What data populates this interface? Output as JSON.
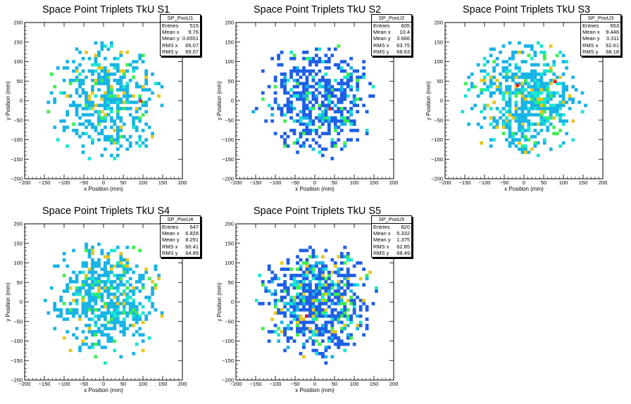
{
  "chart_data": [
    {
      "type": "heatmap",
      "title": "Space Point Triplets TkU S1",
      "xlabel": "x Position (mm)",
      "ylabel": "y Position (mm)",
      "xlim": [
        -200,
        200
      ],
      "ylim": [
        -200,
        200
      ],
      "xticks": [
        "−200",
        "−150",
        "−100",
        "−50",
        "0",
        "50",
        "100",
        "150",
        "200"
      ],
      "yticks": [
        "200",
        "150",
        "100",
        "50",
        "0",
        "−50",
        "−100",
        "−150",
        "−200"
      ],
      "stats": {
        "name": "SP_PosU1",
        "rows": [
          {
            "label": "Entries",
            "value": "515"
          },
          {
            "label": "Mean x",
            "value": "9.76"
          },
          {
            "label": "Mean y",
            "value": "0.6551"
          },
          {
            "label": "RMS x",
            "value": "65.07"
          },
          {
            "label": "RMS y",
            "value": "69.07"
          }
        ]
      },
      "hot_cells": [
        [
          90,
          -5
        ]
      ]
    },
    {
      "type": "heatmap",
      "title": "Space Point Triplets TkU S2",
      "xlabel": "x Position (mm)",
      "ylabel": "y Position (mm)",
      "xlim": [
        -200,
        200
      ],
      "ylim": [
        -200,
        200
      ],
      "xticks": [
        "−200",
        "−150",
        "−100",
        "−50",
        "0",
        "50",
        "100",
        "150",
        "200"
      ],
      "yticks": [
        "200",
        "150",
        "100",
        "50",
        "0",
        "−50",
        "−100",
        "−150",
        "−200"
      ],
      "stats": {
        "name": "SP_PosU2",
        "rows": [
          {
            "label": "Entries",
            "value": "605"
          },
          {
            "label": "Mean x",
            "value": "10.4"
          },
          {
            "label": "Mean y",
            "value": "3.666"
          },
          {
            "label": "RMS x",
            "value": "63.75"
          },
          {
            "label": "RMS y",
            "value": "68.63"
          }
        ]
      },
      "hot_cells": [
        [
          35,
          -25
        ]
      ]
    },
    {
      "type": "heatmap",
      "title": "Space Point Triplets TkU S3",
      "xlabel": "x Position (mm)",
      "ylabel": "y Position (mm)",
      "xlim": [
        -200,
        200
      ],
      "ylim": [
        -200,
        200
      ],
      "xticks": [
        "−200",
        "−150",
        "−100",
        "−50",
        "0",
        "50",
        "100",
        "150",
        "200"
      ],
      "yticks": [
        "200",
        "150",
        "100",
        "50",
        "0",
        "−50",
        "−100",
        "−150",
        "−200"
      ],
      "stats": {
        "name": "SP_PosU3",
        "rows": [
          {
            "label": "Entries",
            "value": "653"
          },
          {
            "label": "Mean x",
            "value": "9.446"
          },
          {
            "label": "Mean y",
            "value": "3.311"
          },
          {
            "label": "RMS x",
            "value": "62.61"
          },
          {
            "label": "RMS y",
            "value": "68.18"
          }
        ]
      },
      "hot_cells": [
        [
          -20,
          35
        ],
        [
          75,
          45
        ]
      ]
    },
    {
      "type": "heatmap",
      "title": "Space Point Triplets TkU S4",
      "xlabel": "x Position (mm)",
      "ylabel": "y Position (mm)",
      "xlim": [
        -200,
        200
      ],
      "ylim": [
        -200,
        200
      ],
      "xticks": [
        "−200",
        "−150",
        "−100",
        "−50",
        "0",
        "50",
        "100",
        "150",
        "200"
      ],
      "yticks": [
        "200",
        "150",
        "100",
        "50",
        "0",
        "−50",
        "−100",
        "−150",
        "−200"
      ],
      "stats": {
        "name": "SP_PosU4",
        "rows": [
          {
            "label": "Entries",
            "value": "647"
          },
          {
            "label": "Mean x",
            "value": "6.828"
          },
          {
            "label": "Mean y",
            "value": "8.291"
          },
          {
            "label": "RMS x",
            "value": "60.41"
          },
          {
            "label": "RMS y",
            "value": "64.89"
          }
        ]
      },
      "hot_cells": []
    },
    {
      "type": "heatmap",
      "title": "Space Point Triplets TkU S5",
      "xlabel": "x Position (mm)",
      "ylabel": "y Position (mm)",
      "xlim": [
        -200,
        200
      ],
      "ylim": [
        -200,
        200
      ],
      "xticks": [
        "−200",
        "−150",
        "−100",
        "−50",
        "0",
        "50",
        "100",
        "150",
        "200"
      ],
      "yticks": [
        "200",
        "150",
        "100",
        "50",
        "0",
        "−50",
        "−100",
        "−150",
        "−200"
      ],
      "stats": {
        "name": "SP_PosU5",
        "rows": [
          {
            "label": "Entries",
            "value": "820"
          },
          {
            "label": "Mean x",
            "value": "5.332"
          },
          {
            "label": "Mean y",
            "value": "1.375"
          },
          {
            "label": "RMS x",
            "value": "62.85"
          },
          {
            "label": "RMS y",
            "value": "68.49"
          }
        ]
      },
      "hot_cells": [
        [
          -25,
          -40
        ]
      ]
    }
  ],
  "colors": {
    "low": "#1f5fe6",
    "mid_low": "#19b4e6",
    "mid": "#19e6d2",
    "mid_high": "#3cf04b",
    "high": "#e6c81e",
    "peak": "#e61919"
  }
}
